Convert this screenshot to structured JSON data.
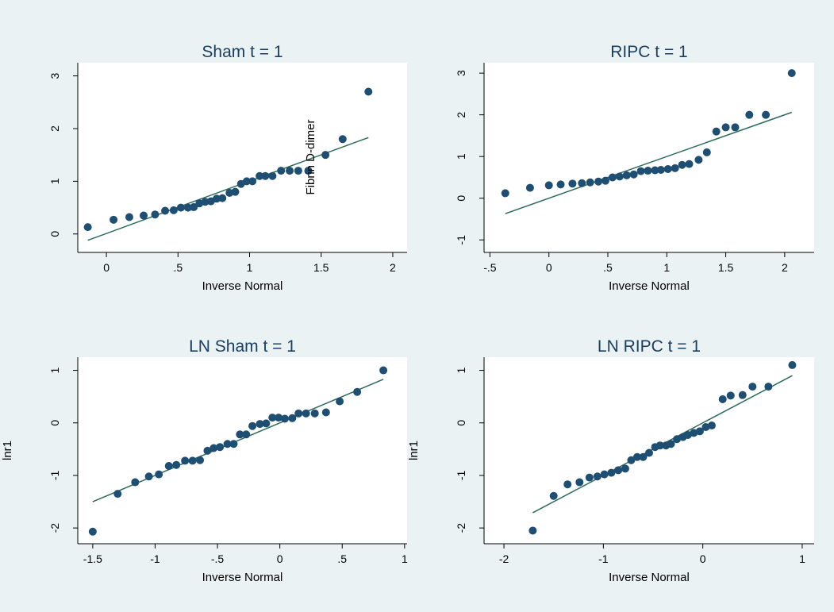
{
  "chart_data": [
    {
      "type": "scatter",
      "title": "Sham t = 1",
      "xlabel": "Inverse Normal",
      "ylabel": "",
      "annotation": "Fibrin D-dimer",
      "xlim": [
        -0.2,
        2.1
      ],
      "ylim": [
        -0.35,
        3.25
      ],
      "xticks": [
        0,
        0.5,
        1,
        1.5,
        2
      ],
      "xtick_labels": [
        "0",
        ".5",
        "1",
        "1.5",
        "2"
      ],
      "yticks": [
        0,
        1,
        2,
        3
      ],
      "ytick_labels": [
        "0",
        "1",
        "2",
        "3"
      ],
      "ref_line": [
        [
          -0.13,
          -0.12
        ],
        [
          1.83,
          1.83
        ]
      ],
      "points": [
        [
          -0.13,
          0.13
        ],
        [
          0.05,
          0.27
        ],
        [
          0.16,
          0.32
        ],
        [
          0.26,
          0.35
        ],
        [
          0.34,
          0.37
        ],
        [
          0.41,
          0.44
        ],
        [
          0.47,
          0.45
        ],
        [
          0.52,
          0.5
        ],
        [
          0.57,
          0.5
        ],
        [
          0.61,
          0.51
        ],
        [
          0.65,
          0.58
        ],
        [
          0.69,
          0.61
        ],
        [
          0.73,
          0.62
        ],
        [
          0.77,
          0.67
        ],
        [
          0.81,
          0.68
        ],
        [
          0.86,
          0.78
        ],
        [
          0.9,
          0.8
        ],
        [
          0.94,
          0.95
        ],
        [
          0.98,
          1.0
        ],
        [
          1.02,
          1.0
        ],
        [
          1.07,
          1.1
        ],
        [
          1.11,
          1.1
        ],
        [
          1.16,
          1.1
        ],
        [
          1.22,
          1.2
        ],
        [
          1.28,
          1.2
        ],
        [
          1.34,
          1.2
        ],
        [
          1.41,
          1.2
        ],
        [
          1.53,
          1.5
        ],
        [
          1.65,
          1.8
        ],
        [
          1.83,
          2.7
        ]
      ]
    },
    {
      "type": "scatter",
      "title": "RIPC t = 1",
      "xlabel": "Inverse Normal",
      "ylabel": "",
      "xlim": [
        -0.55,
        2.25
      ],
      "ylim": [
        -1.3,
        3.25
      ],
      "xticks": [
        -0.5,
        0,
        0.5,
        1,
        1.5,
        2
      ],
      "xtick_labels": [
        "-.5",
        "0",
        ".5",
        "1",
        "1.5",
        "2"
      ],
      "yticks": [
        -1,
        0,
        1,
        2,
        3
      ],
      "ytick_labels": [
        "-1",
        "0",
        "1",
        "2",
        "3"
      ],
      "ref_line": [
        [
          -0.37,
          -0.37
        ],
        [
          2.06,
          2.06
        ]
      ],
      "points": [
        [
          -0.37,
          0.12
        ],
        [
          -0.16,
          0.25
        ],
        [
          0.0,
          0.31
        ],
        [
          0.1,
          0.33
        ],
        [
          0.2,
          0.35
        ],
        [
          0.28,
          0.36
        ],
        [
          0.35,
          0.38
        ],
        [
          0.42,
          0.4
        ],
        [
          0.48,
          0.42
        ],
        [
          0.54,
          0.5
        ],
        [
          0.6,
          0.52
        ],
        [
          0.66,
          0.55
        ],
        [
          0.72,
          0.57
        ],
        [
          0.78,
          0.65
        ],
        [
          0.84,
          0.66
        ],
        [
          0.9,
          0.67
        ],
        [
          0.95,
          0.68
        ],
        [
          1.01,
          0.7
        ],
        [
          1.07,
          0.72
        ],
        [
          1.13,
          0.8
        ],
        [
          1.19,
          0.82
        ],
        [
          1.27,
          0.92
        ],
        [
          1.34,
          1.1
        ],
        [
          1.42,
          1.6
        ],
        [
          1.5,
          1.7
        ],
        [
          1.58,
          1.7
        ],
        [
          1.7,
          2.0
        ],
        [
          1.84,
          2.0
        ],
        [
          2.06,
          3.0
        ]
      ]
    },
    {
      "type": "scatter",
      "title": "LN Sham t = 1",
      "xlabel": "Inverse Normal",
      "ylabel": "lnr1",
      "xlim": [
        -1.62,
        1.02
      ],
      "ylim": [
        -2.3,
        1.25
      ],
      "xticks": [
        -1.5,
        -1,
        -0.5,
        0,
        0.5,
        1
      ],
      "xtick_labels": [
        "-1.5",
        "-1",
        "-.5",
        "0",
        ".5",
        "1"
      ],
      "yticks": [
        -2,
        -1,
        0,
        1
      ],
      "ytick_labels": [
        "-2",
        "-1",
        "0",
        "1"
      ],
      "ref_line": [
        [
          -1.5,
          -1.5
        ],
        [
          0.83,
          0.83
        ]
      ],
      "points": [
        [
          -1.5,
          -2.07
        ],
        [
          -1.3,
          -1.35
        ],
        [
          -1.16,
          -1.13
        ],
        [
          -1.05,
          -1.02
        ],
        [
          -0.97,
          -0.98
        ],
        [
          -0.89,
          -0.82
        ],
        [
          -0.83,
          -0.8
        ],
        [
          -0.76,
          -0.72
        ],
        [
          -0.7,
          -0.72
        ],
        [
          -0.64,
          -0.71
        ],
        [
          -0.58,
          -0.53
        ],
        [
          -0.53,
          -0.48
        ],
        [
          -0.48,
          -0.46
        ],
        [
          -0.42,
          -0.4
        ],
        [
          -0.37,
          -0.4
        ],
        [
          -0.32,
          -0.22
        ],
        [
          -0.27,
          -0.22
        ],
        [
          -0.22,
          -0.06
        ],
        [
          -0.16,
          -0.02
        ],
        [
          -0.11,
          -0.01
        ],
        [
          -0.06,
          0.1
        ],
        [
          -0.01,
          0.1
        ],
        [
          0.04,
          0.08
        ],
        [
          0.1,
          0.09
        ],
        [
          0.15,
          0.18
        ],
        [
          0.21,
          0.18
        ],
        [
          0.28,
          0.18
        ],
        [
          0.37,
          0.2
        ],
        [
          0.48,
          0.41
        ],
        [
          0.62,
          0.59
        ],
        [
          0.83,
          1.0
        ]
      ]
    },
    {
      "type": "scatter",
      "title": "LN RIPC t = 1",
      "xlabel": "Inverse Normal",
      "ylabel": "lnr1",
      "xlim": [
        -2.2,
        1.12
      ],
      "ylim": [
        -2.3,
        1.25
      ],
      "xticks": [
        -2,
        -1,
        0,
        1
      ],
      "xtick_labels": [
        "-2",
        "-1",
        "0",
        "1"
      ],
      "yticks": [
        -2,
        -1,
        0,
        1
      ],
      "ytick_labels": [
        "-2",
        "-1",
        "0",
        "1"
      ],
      "ref_line": [
        [
          -1.71,
          -1.71
        ],
        [
          0.9,
          0.9
        ]
      ],
      "points": [
        [
          -1.71,
          -2.05
        ],
        [
          -1.5,
          -1.39
        ],
        [
          -1.36,
          -1.17
        ],
        [
          -1.24,
          -1.13
        ],
        [
          -1.14,
          -1.04
        ],
        [
          -1.06,
          -1.02
        ],
        [
          -0.99,
          -0.98
        ],
        [
          -0.92,
          -0.95
        ],
        [
          -0.85,
          -0.9
        ],
        [
          -0.78,
          -0.87
        ],
        [
          -0.72,
          -0.71
        ],
        [
          -0.66,
          -0.65
        ],
        [
          -0.6,
          -0.65
        ],
        [
          -0.54,
          -0.57
        ],
        [
          -0.48,
          -0.46
        ],
        [
          -0.43,
          -0.43
        ],
        [
          -0.37,
          -0.43
        ],
        [
          -0.32,
          -0.4
        ],
        [
          -0.26,
          -0.31
        ],
        [
          -0.2,
          -0.27
        ],
        [
          -0.15,
          -0.23
        ],
        [
          -0.09,
          -0.19
        ],
        [
          -0.03,
          -0.16
        ],
        [
          0.03,
          -0.08
        ],
        [
          0.09,
          -0.05
        ],
        [
          0.2,
          0.45
        ],
        [
          0.28,
          0.52
        ],
        [
          0.4,
          0.53
        ],
        [
          0.5,
          0.69
        ],
        [
          0.66,
          0.69
        ],
        [
          0.9,
          1.1
        ]
      ]
    }
  ]
}
